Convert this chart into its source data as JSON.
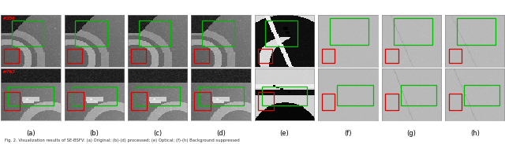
{
  "figsize": [
    6.4,
    1.83
  ],
  "dpi": 100,
  "nrows": 2,
  "ncols": 8,
  "row_labels": [
    "#356",
    "#767"
  ],
  "col_labels": [
    "(a)",
    "(b)",
    "(c)",
    "(d)",
    "(e)",
    "(f)",
    "(g)",
    "(h)"
  ],
  "background_color": "#ffffff",
  "label_color": "#000000",
  "green_color": "#00bb00",
  "red_color": "#dd0000",
  "col_label_fontsize": 6.0,
  "row_label_fontsize": 4.5,
  "caption": "Fig. 2. Visualization results of SE-BSFV: (a) Original; (b)-(d) processed; (e) Optical; (f)-(h) Background suppressed",
  "caption_fontsize": 3.8,
  "green_boxes_row0": {
    "cols04": [
      0.18,
      0.1,
      0.72,
      0.6
    ],
    "cols57": [
      0.2,
      0.06,
      0.85,
      0.58
    ]
  },
  "red_boxes_row0": {
    "cols04": [
      0.05,
      0.65,
      0.3,
      0.92
    ],
    "cols57": [
      0.06,
      0.65,
      0.28,
      0.92
    ]
  },
  "green_boxes_row1": {
    "cols04": [
      0.12,
      0.35,
      0.88,
      0.72
    ],
    "cols57": [
      0.32,
      0.32,
      0.92,
      0.72
    ]
  },
  "red_boxes_row1": {
    "cols04": [
      0.05,
      0.45,
      0.32,
      0.8
    ],
    "cols57": [
      0.06,
      0.48,
      0.28,
      0.8
    ]
  }
}
